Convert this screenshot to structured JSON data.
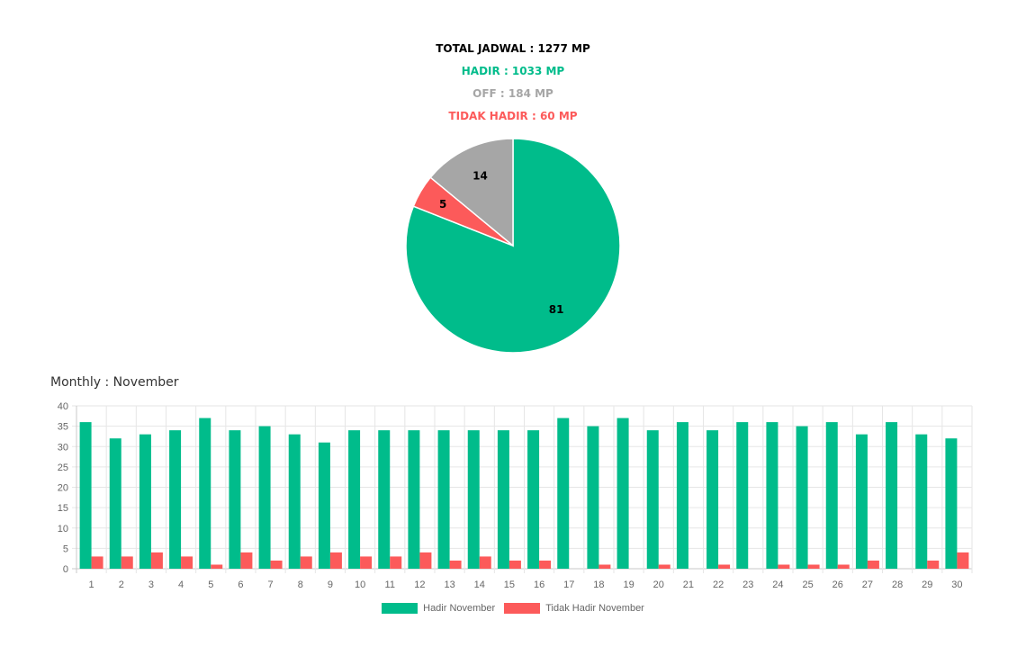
{
  "summary": {
    "total": "TOTAL JADWAL : 1277 MP",
    "hadir": "HADIR : 1033 MP",
    "off": "OFF : 184 MP",
    "tidak_hadir": "TIDAK HADIR : 60 MP"
  },
  "colors": {
    "hadir": "#00bc8b",
    "off": "#a6a6a6",
    "tidak_hadir": "#fc5a5a",
    "total": "#000000"
  },
  "monthly_title": "Monthly : November",
  "chart_data": [
    {
      "type": "pie",
      "slices": [
        {
          "label": "81",
          "value": 81,
          "color": "#00bc8b"
        },
        {
          "label": "5",
          "value": 5,
          "color": "#fc5a5a"
        },
        {
          "label": "14",
          "value": 14,
          "color": "#a6a6a6"
        }
      ]
    },
    {
      "type": "bar",
      "categories": [
        "1",
        "2",
        "3",
        "4",
        "5",
        "6",
        "7",
        "8",
        "9",
        "10",
        "11",
        "12",
        "13",
        "14",
        "15",
        "16",
        "17",
        "18",
        "19",
        "20",
        "21",
        "22",
        "23",
        "24",
        "25",
        "26",
        "27",
        "28",
        "29",
        "30"
      ],
      "series": [
        {
          "name": "Hadir November",
          "color": "#00bc8b",
          "values": [
            36,
            32,
            33,
            34,
            37,
            34,
            35,
            33,
            31,
            34,
            34,
            34,
            34,
            34,
            34,
            34,
            37,
            35,
            37,
            34,
            36,
            34,
            36,
            36,
            35,
            36,
            33,
            36,
            33,
            32
          ]
        },
        {
          "name": "Tidak Hadir November",
          "color": "#fc5a5a",
          "values": [
            3,
            3,
            4,
            3,
            1,
            4,
            2,
            3,
            4,
            3,
            3,
            4,
            2,
            3,
            2,
            2,
            0,
            1,
            0,
            1,
            0,
            1,
            0,
            1,
            1,
            1,
            2,
            0,
            2,
            4
          ]
        }
      ],
      "yticks": [
        "0",
        "5",
        "10",
        "15",
        "20",
        "25",
        "30",
        "35",
        "40"
      ],
      "ylim": [
        0,
        40
      ],
      "grid": true,
      "legend": "bottom"
    }
  ]
}
